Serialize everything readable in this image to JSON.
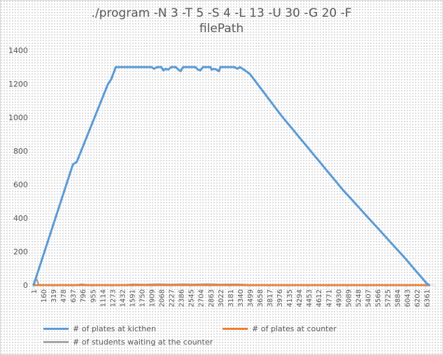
{
  "chart_data": {
    "type": "line",
    "title": "./program -N 3 -T 5 -S 4 -L 13 -U 30 -G 20 -F filePath",
    "title_lines": [
      "./program -N 3 -T 5 -S 4 -L 13 -U 30 -G 20 -F",
      "filePath"
    ],
    "ylim": [
      0,
      1400
    ],
    "yticks": [
      0,
      200,
      400,
      600,
      800,
      1000,
      1200,
      1400
    ],
    "xlim": [
      1,
      6500
    ],
    "x_tick_labels": [
      "1",
      "160",
      "319",
      "478",
      "637",
      "796",
      "955",
      "1114",
      "1273",
      "1432",
      "1591",
      "1750",
      "1909",
      "2068",
      "2227",
      "2386",
      "2545",
      "2704",
      "2863",
      "3022",
      "3181",
      "3340",
      "3499",
      "3658",
      "3817",
      "3976",
      "4135",
      "4294",
      "4453",
      "4612",
      "4771",
      "4930",
      "5089",
      "5248",
      "5407",
      "5566",
      "5725",
      "5884",
      "6043",
      "6202",
      "6361"
    ],
    "grid": false,
    "legend_position": "bottom",
    "series": [
      {
        "name": "# of plates at kicthen",
        "color": "#5b9bd5",
        "points": [
          [
            1,
            0
          ],
          [
            50,
            55
          ],
          [
            637,
            720
          ],
          [
            700,
            735
          ],
          [
            1200,
            1195
          ],
          [
            1260,
            1230
          ],
          [
            1330,
            1300
          ],
          [
            1500,
            1300
          ],
          [
            1909,
            1300
          ],
          [
            1950,
            1290
          ],
          [
            2000,
            1300
          ],
          [
            2068,
            1300
          ],
          [
            2100,
            1280
          ],
          [
            2140,
            1290
          ],
          [
            2180,
            1285
          ],
          [
            2227,
            1300
          ],
          [
            2300,
            1300
          ],
          [
            2345,
            1285
          ],
          [
            2380,
            1275
          ],
          [
            2420,
            1300
          ],
          [
            2545,
            1300
          ],
          [
            2620,
            1300
          ],
          [
            2660,
            1285
          ],
          [
            2700,
            1280
          ],
          [
            2740,
            1300
          ],
          [
            2863,
            1300
          ],
          [
            2880,
            1285
          ],
          [
            2920,
            1290
          ],
          [
            2960,
            1285
          ],
          [
            3000,
            1275
          ],
          [
            3022,
            1300
          ],
          [
            3100,
            1300
          ],
          [
            3181,
            1300
          ],
          [
            3250,
            1300
          ],
          [
            3300,
            1290
          ],
          [
            3340,
            1300
          ],
          [
            3420,
            1280
          ],
          [
            3460,
            1270
          ],
          [
            3499,
            1260
          ],
          [
            4000,
            1015
          ],
          [
            5000,
            570
          ],
          [
            6000,
            165
          ],
          [
            6361,
            10
          ],
          [
            6400,
            0
          ]
        ]
      },
      {
        "name": "# of plates at counter",
        "color": "#ed7d31",
        "points": [
          [
            1,
            0
          ],
          [
            6400,
            0
          ]
        ]
      },
      {
        "name": "# of students waiting at the counter",
        "color": "#a5a5a5",
        "points": [
          [
            1,
            0
          ],
          [
            20,
            30
          ],
          [
            60,
            30
          ],
          [
            80,
            0
          ],
          [
            700,
            0
          ],
          [
            780,
            5
          ],
          [
            860,
            0
          ],
          [
            1500,
            0
          ],
          [
            1600,
            4
          ],
          [
            1800,
            2
          ],
          [
            2000,
            5
          ],
          [
            2200,
            3
          ],
          [
            2400,
            5
          ],
          [
            2600,
            3
          ],
          [
            2800,
            6
          ],
          [
            3000,
            3
          ],
          [
            3300,
            4
          ],
          [
            3499,
            0
          ],
          [
            6400,
            0
          ]
        ]
      }
    ]
  }
}
